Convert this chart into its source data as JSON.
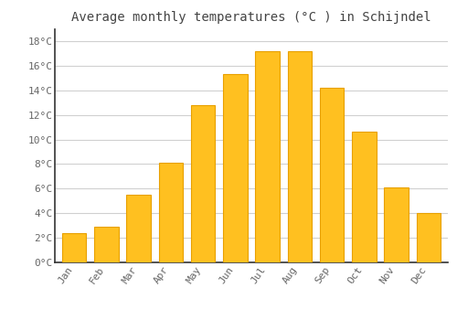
{
  "title": "Average monthly temperatures (°C ) in Schijndel",
  "months": [
    "Jan",
    "Feb",
    "Mar",
    "Apr",
    "May",
    "Jun",
    "Jul",
    "Aug",
    "Sep",
    "Oct",
    "Nov",
    "Dec"
  ],
  "values": [
    2.4,
    2.9,
    5.5,
    8.1,
    12.8,
    15.3,
    17.2,
    17.2,
    14.2,
    10.6,
    6.1,
    4.0
  ],
  "bar_color_top": "#FFC020",
  "bar_color_bottom": "#FFB000",
  "bar_edge_color": "#E8A000",
  "background_color": "#ffffff",
  "grid_color": "#d0d0d0",
  "ylim": [
    0,
    19
  ],
  "yticks": [
    0,
    2,
    4,
    6,
    8,
    10,
    12,
    14,
    16,
    18
  ],
  "ytick_labels": [
    "0°C",
    "2°C",
    "4°C",
    "6°C",
    "8°C",
    "10°C",
    "12°C",
    "14°C",
    "16°C",
    "18°C"
  ],
  "title_fontsize": 10,
  "tick_fontsize": 8,
  "tick_font_color": "#666666",
  "title_font_color": "#444444",
  "bar_width": 0.75
}
